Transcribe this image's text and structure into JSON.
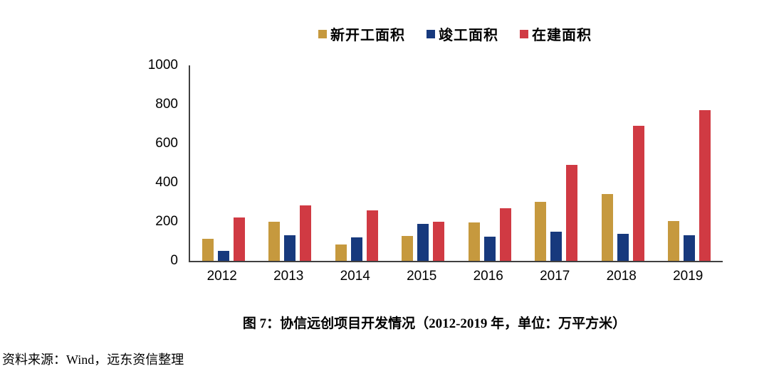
{
  "legend": {
    "items": [
      {
        "label": "新开工面积",
        "color": "#C6993E",
        "icon": "legend-swatch-square"
      },
      {
        "label": "竣工面积",
        "color": "#17397D",
        "icon": "legend-swatch-square"
      },
      {
        "label": "在建面积",
        "color": "#D03A43",
        "icon": "legend-swatch-square"
      }
    ]
  },
  "chart_data": {
    "type": "bar",
    "categories": [
      "2012",
      "2013",
      "2014",
      "2015",
      "2016",
      "2017",
      "2018",
      "2019"
    ],
    "series": [
      {
        "name": "新开工面积",
        "color": "#C6993E",
        "values": [
          113,
          200,
          85,
          127,
          196,
          303,
          341,
          205
        ]
      },
      {
        "name": "竣工面积",
        "color": "#17397D",
        "values": [
          50,
          132,
          120,
          190,
          123,
          148,
          138,
          130
        ]
      },
      {
        "name": "在建面积",
        "color": "#D03A43",
        "values": [
          222,
          285,
          260,
          200,
          270,
          490,
          692,
          770
        ]
      }
    ],
    "title": "图 7：协信远创项目开发情况（2012-2019 年，单位：万平方米）",
    "xlabel": "",
    "ylabel": "",
    "ylim": [
      0,
      1000
    ],
    "yticks": [
      0,
      200,
      400,
      600,
      800,
      1000
    ],
    "grid": false,
    "legend_position": "top-center",
    "axis_color": "#404040"
  },
  "caption": "图 7：协信远创项目开发情况（2012-2019 年，单位：万平方米）",
  "source": "资料来源：Wind，远东资信整理"
}
